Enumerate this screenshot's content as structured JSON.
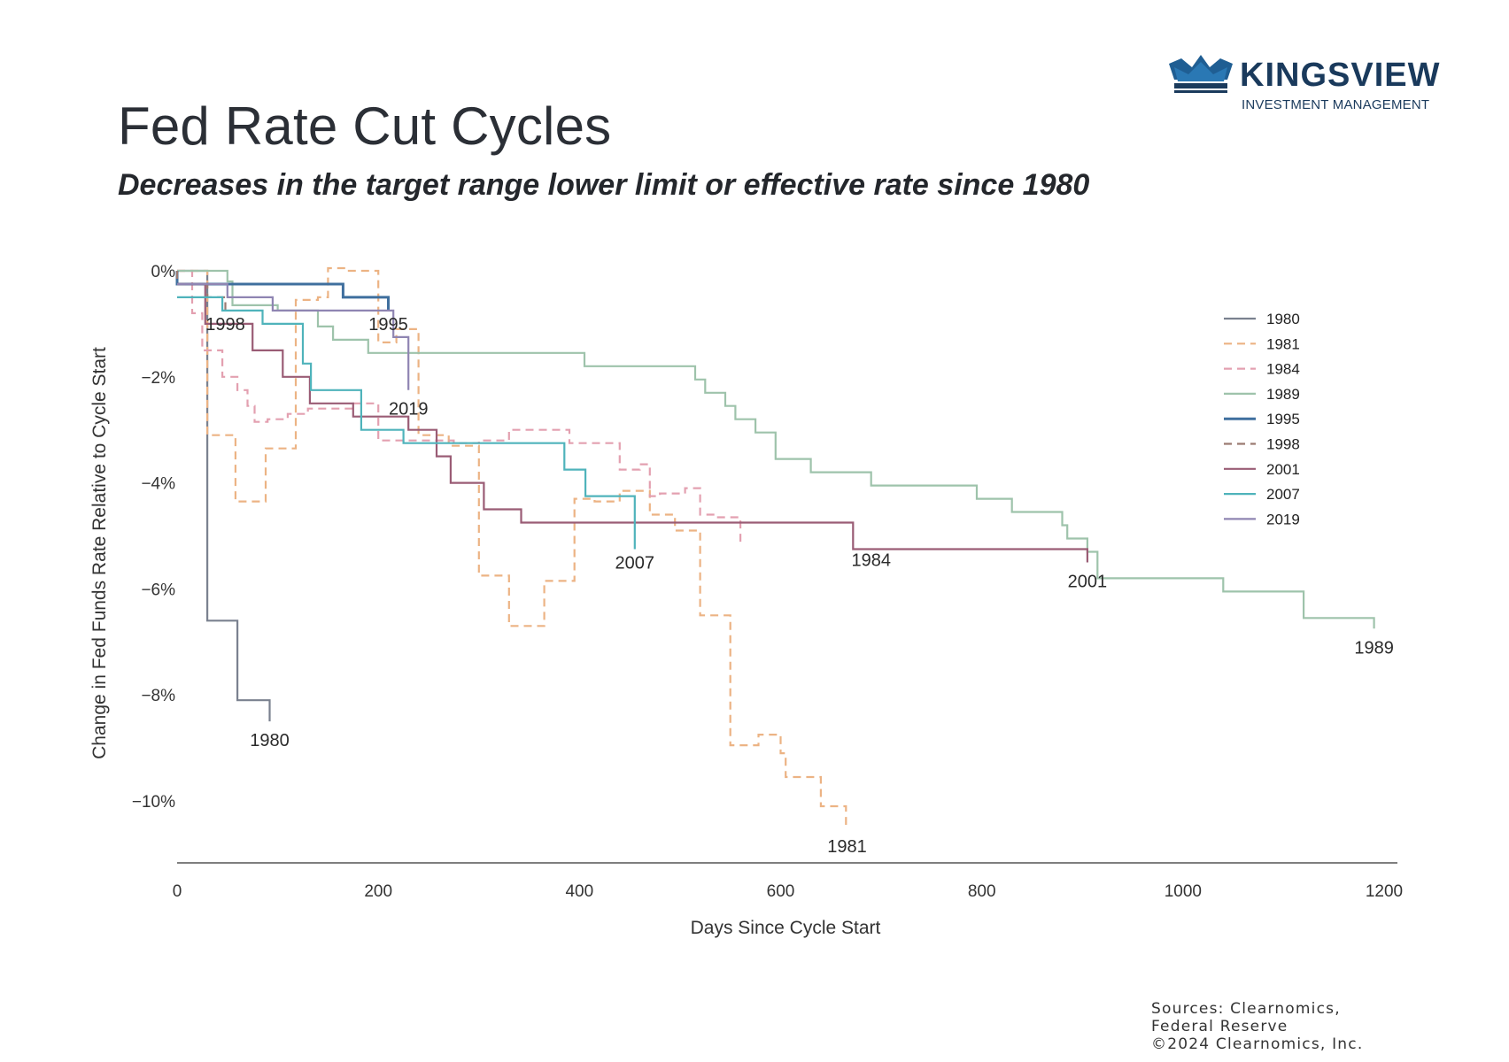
{
  "header": {
    "title": "Fed Rate Cut Cycles",
    "subtitle": "Decreases in the target range lower limit or effective rate since 1980"
  },
  "logo": {
    "name": "KINGSVIEW",
    "tagline": "INVESTMENT MANAGEMENT",
    "colors": {
      "dark": "#1a3a5c",
      "light": "#2a78b4"
    }
  },
  "sources": {
    "line1": "Sources: Clearnomics,",
    "line2": "Federal Reserve",
    "line3": "©2024 Clearnomics, Inc."
  },
  "chart_data": {
    "type": "line",
    "title": "Fed Rate Cut Cycles",
    "xlabel": "Days Since Cycle Start",
    "ylabel": "Change in Fed Funds Rate Relative to Cycle Start",
    "xlim": [
      0,
      1210
    ],
    "ylim": [
      -11.2,
      0.2
    ],
    "xticks": [
      0,
      200,
      400,
      600,
      800,
      1000,
      1200
    ],
    "xtick_labels": [
      "0",
      "200",
      "400",
      "600",
      "800",
      "1000",
      "1200"
    ],
    "yticks": [
      0,
      -2,
      -4,
      -6,
      -8,
      -10
    ],
    "ytick_labels": [
      "0%",
      "−2%",
      "−4%",
      "−6%",
      "−8%",
      "−10%"
    ],
    "legend_position": "right",
    "series": [
      {
        "name": "1980",
        "color": "#7a818f",
        "dash": false,
        "points": [
          [
            0,
            0
          ],
          [
            30,
            0
          ],
          [
            30,
            -6.6
          ],
          [
            60,
            -6.6
          ],
          [
            60,
            -8.1
          ],
          [
            92,
            -8.1
          ],
          [
            92,
            -8.5
          ]
        ],
        "label": {
          "text": "1980",
          "x": 92,
          "y": -8.85
        }
      },
      {
        "name": "1981",
        "color": "#ecb384",
        "dash": true,
        "points": [
          [
            0,
            0
          ],
          [
            30,
            0
          ],
          [
            30,
            -3.1
          ],
          [
            58,
            -3.1
          ],
          [
            58,
            -4.35
          ],
          [
            88,
            -4.35
          ],
          [
            88,
            -3.35
          ],
          [
            118,
            -3.35
          ],
          [
            118,
            -0.55
          ],
          [
            140,
            -0.55
          ],
          [
            140,
            -0.5
          ],
          [
            150,
            -0.5
          ],
          [
            150,
            0.05
          ],
          [
            168,
            0.05
          ],
          [
            168,
            0
          ],
          [
            200,
            0
          ],
          [
            200,
            -1.35
          ],
          [
            218,
            -1.35
          ],
          [
            218,
            -1.1
          ],
          [
            240,
            -1.1
          ],
          [
            240,
            -3.1
          ],
          [
            270,
            -3.1
          ],
          [
            270,
            -3.3
          ],
          [
            300,
            -3.3
          ],
          [
            300,
            -5.75
          ],
          [
            330,
            -5.75
          ],
          [
            330,
            -6.7
          ],
          [
            365,
            -6.7
          ],
          [
            365,
            -5.85
          ],
          [
            395,
            -5.85
          ],
          [
            395,
            -4.3
          ],
          [
            415,
            -4.3
          ],
          [
            415,
            -4.35
          ],
          [
            440,
            -4.35
          ],
          [
            440,
            -4.15
          ],
          [
            470,
            -4.15
          ],
          [
            470,
            -4.6
          ],
          [
            495,
            -4.6
          ],
          [
            495,
            -4.9
          ],
          [
            520,
            -4.9
          ],
          [
            520,
            -6.5
          ],
          [
            550,
            -6.5
          ],
          [
            550,
            -8.95
          ],
          [
            578,
            -8.95
          ],
          [
            578,
            -8.75
          ],
          [
            600,
            -8.75
          ],
          [
            600,
            -9.1
          ],
          [
            605,
            -9.1
          ],
          [
            605,
            -9.55
          ],
          [
            640,
            -9.55
          ],
          [
            640,
            -10.1
          ],
          [
            665,
            -10.1
          ],
          [
            665,
            -10.45
          ]
        ],
        "label": {
          "text": "1981",
          "x": 666,
          "y": -10.85
        }
      },
      {
        "name": "1984",
        "color": "#e3a0b0",
        "dash": true,
        "points": [
          [
            0,
            0
          ],
          [
            15,
            0
          ],
          [
            15,
            -0.8
          ],
          [
            25,
            -0.8
          ],
          [
            25,
            -1.5
          ],
          [
            45,
            -1.5
          ],
          [
            45,
            -2.0
          ],
          [
            60,
            -2.0
          ],
          [
            60,
            -2.25
          ],
          [
            70,
            -2.25
          ],
          [
            70,
            -2.55
          ],
          [
            77,
            -2.55
          ],
          [
            77,
            -2.85
          ],
          [
            90,
            -2.85
          ],
          [
            90,
            -2.8
          ],
          [
            110,
            -2.8
          ],
          [
            110,
            -2.7
          ],
          [
            130,
            -2.7
          ],
          [
            130,
            -2.6
          ],
          [
            175,
            -2.6
          ],
          [
            175,
            -2.5
          ],
          [
            200,
            -2.5
          ],
          [
            200,
            -3.2
          ],
          [
            275,
            -3.2
          ],
          [
            275,
            -3.25
          ],
          [
            300,
            -3.25
          ],
          [
            300,
            -3.2
          ],
          [
            330,
            -3.2
          ],
          [
            330,
            -3.0
          ],
          [
            390,
            -3.0
          ],
          [
            390,
            -3.25
          ],
          [
            440,
            -3.25
          ],
          [
            440,
            -3.75
          ],
          [
            460,
            -3.75
          ],
          [
            460,
            -3.65
          ],
          [
            470,
            -3.65
          ],
          [
            470,
            -4.25
          ],
          [
            480,
            -4.25
          ],
          [
            480,
            -4.2
          ],
          [
            505,
            -4.2
          ],
          [
            505,
            -4.1
          ],
          [
            520,
            -4.1
          ],
          [
            520,
            -4.6
          ],
          [
            535,
            -4.6
          ],
          [
            535,
            -4.65
          ],
          [
            560,
            -4.65
          ],
          [
            560,
            -5.15
          ]
        ],
        "label": {
          "text": "1984",
          "x": 690,
          "y": -5.45
        }
      },
      {
        "name": "1989",
        "color": "#9ec3ab",
        "dash": false,
        "points": [
          [
            0,
            0
          ],
          [
            50,
            0
          ],
          [
            50,
            -0.2
          ],
          [
            55,
            -0.2
          ],
          [
            55,
            -0.65
          ],
          [
            100,
            -0.65
          ],
          [
            100,
            -0.75
          ],
          [
            140,
            -0.75
          ],
          [
            140,
            -1.05
          ],
          [
            155,
            -1.05
          ],
          [
            155,
            -1.3
          ],
          [
            190,
            -1.3
          ],
          [
            190,
            -1.55
          ],
          [
            405,
            -1.55
          ],
          [
            405,
            -1.8
          ],
          [
            515,
            -1.8
          ],
          [
            515,
            -2.05
          ],
          [
            525,
            -2.05
          ],
          [
            525,
            -2.3
          ],
          [
            545,
            -2.3
          ],
          [
            545,
            -2.55
          ],
          [
            555,
            -2.55
          ],
          [
            555,
            -2.8
          ],
          [
            575,
            -2.8
          ],
          [
            575,
            -3.05
          ],
          [
            595,
            -3.05
          ],
          [
            595,
            -3.55
          ],
          [
            630,
            -3.55
          ],
          [
            630,
            -3.8
          ],
          [
            690,
            -3.8
          ],
          [
            690,
            -4.05
          ],
          [
            795,
            -4.05
          ],
          [
            795,
            -4.3
          ],
          [
            830,
            -4.3
          ],
          [
            830,
            -4.55
          ],
          [
            880,
            -4.55
          ],
          [
            880,
            -4.8
          ],
          [
            885,
            -4.8
          ],
          [
            885,
            -5.05
          ],
          [
            905,
            -5.05
          ],
          [
            905,
            -5.3
          ],
          [
            915,
            -5.3
          ],
          [
            915,
            -5.8
          ],
          [
            1040,
            -5.8
          ],
          [
            1040,
            -6.05
          ],
          [
            1120,
            -6.05
          ],
          [
            1120,
            -6.55
          ],
          [
            1190,
            -6.55
          ],
          [
            1190,
            -6.75
          ]
        ],
        "label": {
          "text": "1989",
          "x": 1190,
          "y": -7.1
        }
      },
      {
        "name": "1995",
        "color": "#3f6f9e",
        "dash": false,
        "bold": true,
        "points": [
          [
            0,
            0
          ],
          [
            0,
            -0.25
          ],
          [
            165,
            -0.25
          ],
          [
            165,
            -0.5
          ],
          [
            210,
            -0.5
          ],
          [
            210,
            -0.75
          ]
        ],
        "label": {
          "text": "1995",
          "x": 210,
          "y": -1.0
        }
      },
      {
        "name": "1998",
        "color": "#9b7a72",
        "dash": true,
        "points": [
          [
            0,
            0
          ],
          [
            0,
            -0.25
          ],
          [
            30,
            -0.25
          ],
          [
            30,
            -0.5
          ],
          [
            48,
            -0.5
          ],
          [
            48,
            -0.75
          ]
        ],
        "label": {
          "text": "1998",
          "x": 48,
          "y": -1.0
        }
      },
      {
        "name": "2001",
        "color": "#9a5c75",
        "dash": false,
        "points": [
          [
            0,
            -0.25
          ],
          [
            28,
            -0.25
          ],
          [
            28,
            -1.0
          ],
          [
            75,
            -1.0
          ],
          [
            75,
            -1.5
          ],
          [
            105,
            -1.5
          ],
          [
            105,
            -2.0
          ],
          [
            132,
            -2.0
          ],
          [
            132,
            -2.5
          ],
          [
            175,
            -2.5
          ],
          [
            175,
            -2.75
          ],
          [
            230,
            -2.75
          ],
          [
            230,
            -3.0
          ],
          [
            258,
            -3.0
          ],
          [
            258,
            -3.5
          ],
          [
            272,
            -3.5
          ],
          [
            272,
            -4.0
          ],
          [
            305,
            -4.0
          ],
          [
            305,
            -4.5
          ],
          [
            342,
            -4.5
          ],
          [
            342,
            -4.75
          ],
          [
            672,
            -4.75
          ],
          [
            672,
            -5.25
          ],
          [
            905,
            -5.25
          ],
          [
            905,
            -5.5
          ]
        ],
        "label": {
          "text": "2001",
          "x": 905,
          "y": -5.85
        }
      },
      {
        "name": "2007",
        "color": "#4fb3bb",
        "dash": false,
        "points": [
          [
            0,
            -0.5
          ],
          [
            45,
            -0.5
          ],
          [
            45,
            -0.75
          ],
          [
            85,
            -0.75
          ],
          [
            85,
            -1.0
          ],
          [
            125,
            -1.0
          ],
          [
            125,
            -1.75
          ],
          [
            133,
            -1.75
          ],
          [
            133,
            -2.25
          ],
          [
            183,
            -2.25
          ],
          [
            183,
            -3.0
          ],
          [
            225,
            -3.0
          ],
          [
            225,
            -3.25
          ],
          [
            385,
            -3.25
          ],
          [
            385,
            -3.75
          ],
          [
            406,
            -3.75
          ],
          [
            406,
            -4.25
          ],
          [
            455,
            -4.25
          ],
          [
            455,
            -5.25
          ]
        ],
        "label": {
          "text": "2007",
          "x": 455,
          "y": -5.5
        }
      },
      {
        "name": "2019",
        "color": "#8f85b2",
        "dash": false,
        "points": [
          [
            0,
            -0.25
          ],
          [
            50,
            -0.25
          ],
          [
            50,
            -0.5
          ],
          [
            95,
            -0.5
          ],
          [
            95,
            -0.75
          ],
          [
            215,
            -0.75
          ],
          [
            215,
            -1.25
          ],
          [
            230,
            -1.25
          ],
          [
            230,
            -2.25
          ]
        ],
        "label": {
          "text": "2019",
          "x": 230,
          "y": -2.6
        }
      }
    ]
  }
}
